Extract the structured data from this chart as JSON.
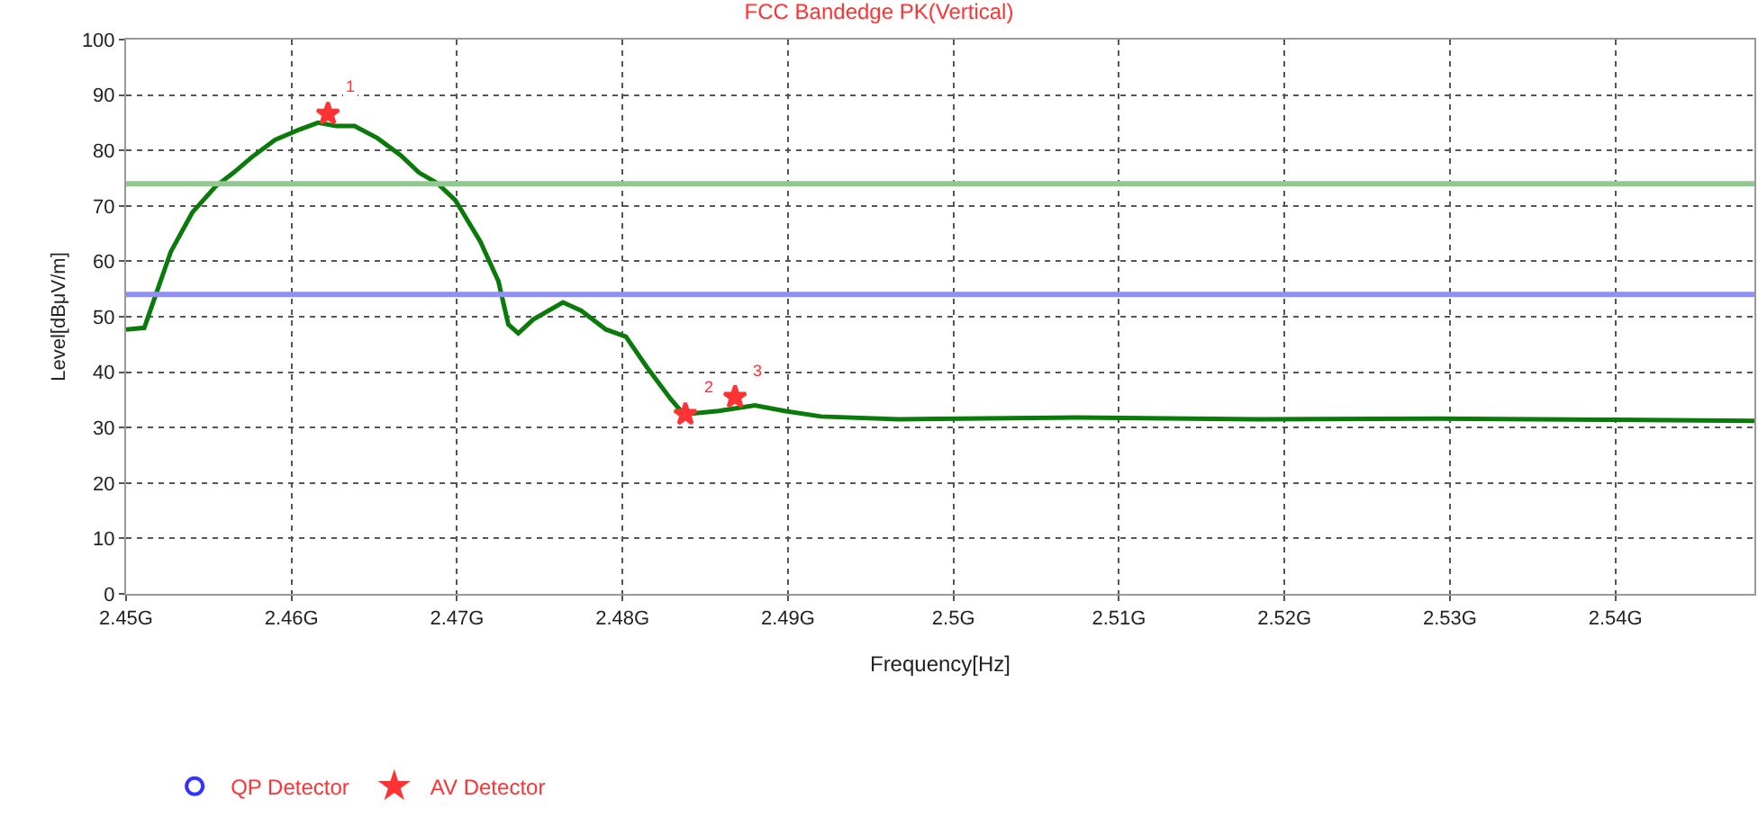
{
  "chart_data": {
    "type": "line",
    "title": "FCC Bandedge PK(Vertical)",
    "xlabel": "Frequency[Hz]",
    "ylabel": "Level[dBμV/m]",
    "xlim": [
      2.45,
      2.5484
    ],
    "ylim": [
      0,
      100
    ],
    "xticks": [
      {
        "value": 2.45,
        "label": "2.45G"
      },
      {
        "value": 2.46,
        "label": "2.46G"
      },
      {
        "value": 2.47,
        "label": "2.47G"
      },
      {
        "value": 2.48,
        "label": "2.48G"
      },
      {
        "value": 2.49,
        "label": "2.49G"
      },
      {
        "value": 2.5,
        "label": "2.5G"
      },
      {
        "value": 2.51,
        "label": "2.51G"
      },
      {
        "value": 2.52,
        "label": "2.52G"
      },
      {
        "value": 2.53,
        "label": "2.53G"
      },
      {
        "value": 2.54,
        "label": "2.54G"
      }
    ],
    "yticks": [
      0,
      10,
      20,
      30,
      40,
      50,
      60,
      70,
      80,
      90,
      100
    ],
    "grid": true,
    "legend": "bottom left",
    "series": [
      {
        "color": "#0a7a0a",
        "marker": "none",
        "x": [
          2.45,
          2.4511,
          2.4516,
          2.4527,
          2.454,
          2.4554,
          2.4565,
          2.4576,
          2.459,
          2.4605,
          2.4616,
          2.4627,
          2.4638,
          2.4652,
          2.4666,
          2.4677,
          2.4688,
          2.4699,
          2.4714,
          2.4725,
          2.4731,
          2.4737,
          2.4746,
          2.4764,
          2.4775,
          2.479,
          2.4802,
          2.4815,
          2.4829,
          2.4837,
          2.4858,
          2.488,
          2.4898,
          2.492,
          2.4967,
          2.5075,
          2.5184,
          2.5293,
          2.5401,
          2.5484
        ],
        "values": [
          47.7,
          48,
          52.3,
          61.7,
          68.8,
          73.5,
          76,
          78.8,
          81.9,
          83.8,
          85,
          84.4,
          84.4,
          82.2,
          79.1,
          76,
          74.1,
          71,
          63.6,
          56.4,
          48.6,
          47,
          49.5,
          52.6,
          51.1,
          47.7,
          46.4,
          40.8,
          35.2,
          32.4,
          33,
          34,
          33,
          32,
          31.5,
          31.8,
          31.5,
          31.6,
          31.4,
          31.2
        ]
      },
      {
        "type": "scatter",
        "name": "QP Detector",
        "color": "#3333ff",
        "marker": "circle"
      },
      {
        "type": "scatter",
        "name": "AV Detector",
        "color": "#ff3333",
        "marker": "star",
        "x": [
          2.4622,
          2.4838,
          2.4868
        ],
        "values": [
          86.6,
          32.4,
          35.5
        ]
      }
    ],
    "ref_lines": [
      {
        "axis": "y",
        "value": 74,
        "color": "#90c890"
      },
      {
        "axis": "y",
        "value": 54,
        "color": "#9090f0"
      }
    ],
    "annotations": [
      {
        "text": "1",
        "x": 2.4622,
        "y": 86.6
      },
      {
        "text": "2",
        "x": 2.4838,
        "y": 32.4
      },
      {
        "text": "3",
        "x": 2.4868,
        "y": 35.5
      }
    ]
  }
}
